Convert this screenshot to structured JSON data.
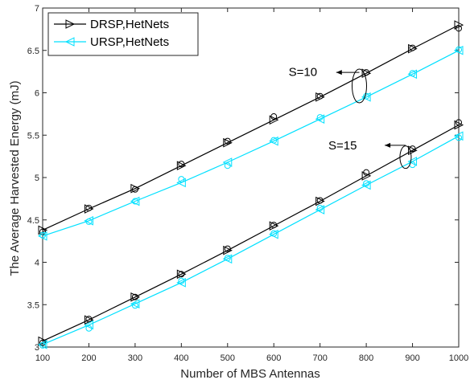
{
  "chart_data": {
    "type": "line",
    "xlabel": "Number of MBS Antennas",
    "ylabel": "The Average Harvested Energy (mJ)",
    "xlim": [
      100,
      1000
    ],
    "ylim": [
      3,
      7
    ],
    "xticks": [
      "100",
      "200",
      "300",
      "400",
      "500",
      "600",
      "700",
      "800",
      "900",
      "1000"
    ],
    "yticks": [
      "3",
      "3.5",
      "4",
      "4.5",
      "5",
      "5.5",
      "6",
      "6.5",
      "7"
    ],
    "grid": false,
    "legend_position": "top-left",
    "x": [
      100,
      200,
      300,
      400,
      500,
      600,
      700,
      800,
      900,
      1000
    ],
    "series": [
      {
        "name": "DRSP,HetNets",
        "group": "S=10",
        "color": "#000000",
        "marker": "triangle-right",
        "values": [
          4.38,
          4.63,
          4.87,
          5.14,
          5.41,
          5.68,
          5.95,
          6.23,
          6.52,
          6.8
        ],
        "circles": [
          4.36,
          4.64,
          4.86,
          5.16,
          5.43,
          5.72,
          5.96,
          6.24,
          6.53,
          6.76
        ]
      },
      {
        "name": "URSP,HetNets",
        "group": "S=10",
        "color": "#00e0ff",
        "marker": "triangle-left",
        "values": [
          4.31,
          4.49,
          4.72,
          4.94,
          5.18,
          5.43,
          5.69,
          5.95,
          6.22,
          6.5
        ],
        "circles": [
          4.32,
          4.48,
          4.72,
          4.98,
          5.14,
          5.44,
          5.71,
          5.96,
          6.23,
          6.51
        ]
      },
      {
        "name": "",
        "group": "S=15",
        "color": "#000000",
        "marker": "triangle-right",
        "values": [
          3.07,
          3.32,
          3.59,
          3.86,
          4.14,
          4.43,
          4.72,
          5.02,
          5.32,
          5.62
        ],
        "circles": [
          3.05,
          3.33,
          3.59,
          3.86,
          4.16,
          4.44,
          4.73,
          5.06,
          5.34,
          5.65
        ]
      },
      {
        "name": "",
        "group": "S=15",
        "color": "#00e0ff",
        "marker": "triangle-left",
        "values": [
          3.03,
          3.26,
          3.51,
          3.76,
          4.04,
          4.33,
          4.62,
          4.91,
          5.19,
          5.49
        ],
        "circles": [
          3.02,
          3.22,
          3.49,
          3.78,
          4.05,
          4.34,
          4.64,
          4.93,
          5.15,
          5.47
        ]
      }
    ],
    "annotations": [
      {
        "text": "S=10"
      },
      {
        "text": "S=15"
      }
    ]
  }
}
